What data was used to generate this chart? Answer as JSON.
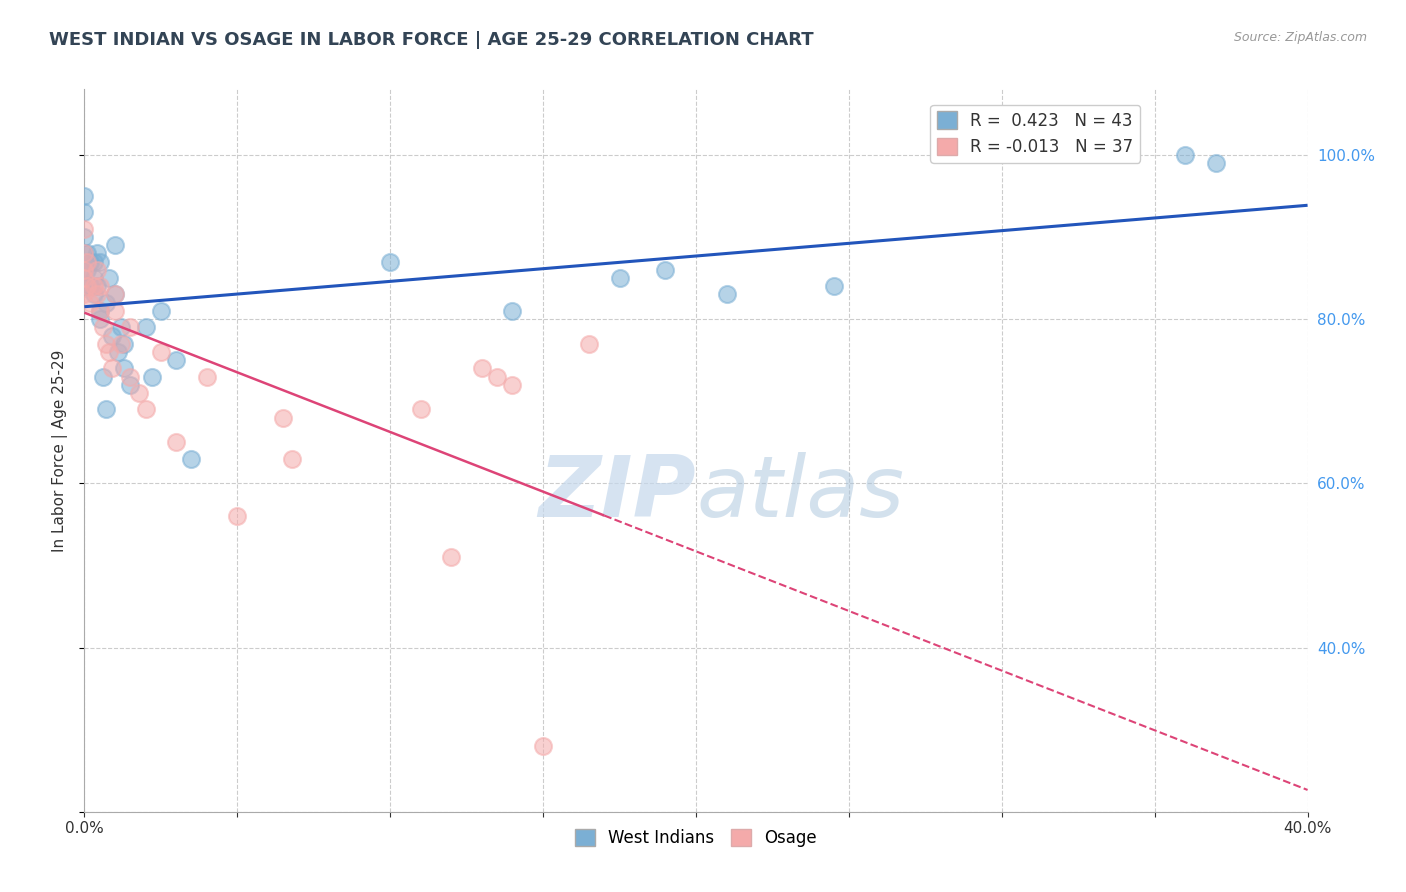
{
  "title": "WEST INDIAN VS OSAGE IN LABOR FORCE | AGE 25-29 CORRELATION CHART",
  "source_text": "Source: ZipAtlas.com",
  "ylabel": "In Labor Force | Age 25-29",
  "xlim": [
    0.0,
    0.4
  ],
  "ylim": [
    0.2,
    1.08
  ],
  "legend_blue_r": "R =  0.423",
  "legend_blue_n": "N = 43",
  "legend_pink_r": "R = -0.013",
  "legend_pink_n": "N = 37",
  "blue_color": "#7BAFD4",
  "pink_color": "#F4AAAA",
  "line_blue": "#2255BB",
  "line_pink": "#DD4477",
  "background_color": "#FFFFFF",
  "grid_color": "#CCCCCC",
  "watermark_text": "ZIPatlas",
  "west_indians_x": [
    0.0,
    0.0,
    0.0,
    0.0,
    0.0,
    0.0,
    0.001,
    0.001,
    0.002,
    0.002,
    0.003,
    0.003,
    0.003,
    0.004,
    0.004,
    0.005,
    0.005,
    0.006,
    0.007,
    0.008,
    0.01,
    0.01,
    0.012,
    0.013,
    0.015,
    0.02,
    0.022,
    0.025,
    0.03,
    0.035,
    0.1,
    0.14,
    0.175,
    0.19,
    0.21,
    0.245,
    0.36,
    0.37,
    0.005,
    0.007,
    0.009,
    0.011,
    0.013
  ],
  "west_indians_y": [
    0.84,
    0.86,
    0.88,
    0.9,
    0.93,
    0.95,
    0.86,
    0.88,
    0.84,
    0.87,
    0.83,
    0.85,
    0.87,
    0.84,
    0.88,
    0.81,
    0.87,
    0.73,
    0.69,
    0.85,
    0.83,
    0.89,
    0.79,
    0.77,
    0.72,
    0.79,
    0.73,
    0.81,
    0.75,
    0.63,
    0.87,
    0.81,
    0.85,
    0.86,
    0.83,
    0.84,
    1.0,
    0.99,
    0.8,
    0.82,
    0.78,
    0.76,
    0.74
  ],
  "osage_x": [
    0.0,
    0.0,
    0.0,
    0.0,
    0.0,
    0.001,
    0.001,
    0.002,
    0.003,
    0.004,
    0.004,
    0.005,
    0.005,
    0.006,
    0.007,
    0.008,
    0.009,
    0.01,
    0.01,
    0.012,
    0.015,
    0.015,
    0.018,
    0.02,
    0.025,
    0.03,
    0.04,
    0.05,
    0.065,
    0.068,
    0.12,
    0.135,
    0.165,
    0.11,
    0.13,
    0.14,
    0.15
  ],
  "osage_y": [
    0.83,
    0.85,
    0.86,
    0.88,
    0.91,
    0.84,
    0.87,
    0.82,
    0.84,
    0.83,
    0.86,
    0.81,
    0.84,
    0.79,
    0.77,
    0.76,
    0.74,
    0.81,
    0.83,
    0.77,
    0.73,
    0.79,
    0.71,
    0.69,
    0.76,
    0.65,
    0.73,
    0.56,
    0.68,
    0.63,
    0.51,
    0.73,
    0.77,
    0.69,
    0.74,
    0.72,
    0.28
  ]
}
